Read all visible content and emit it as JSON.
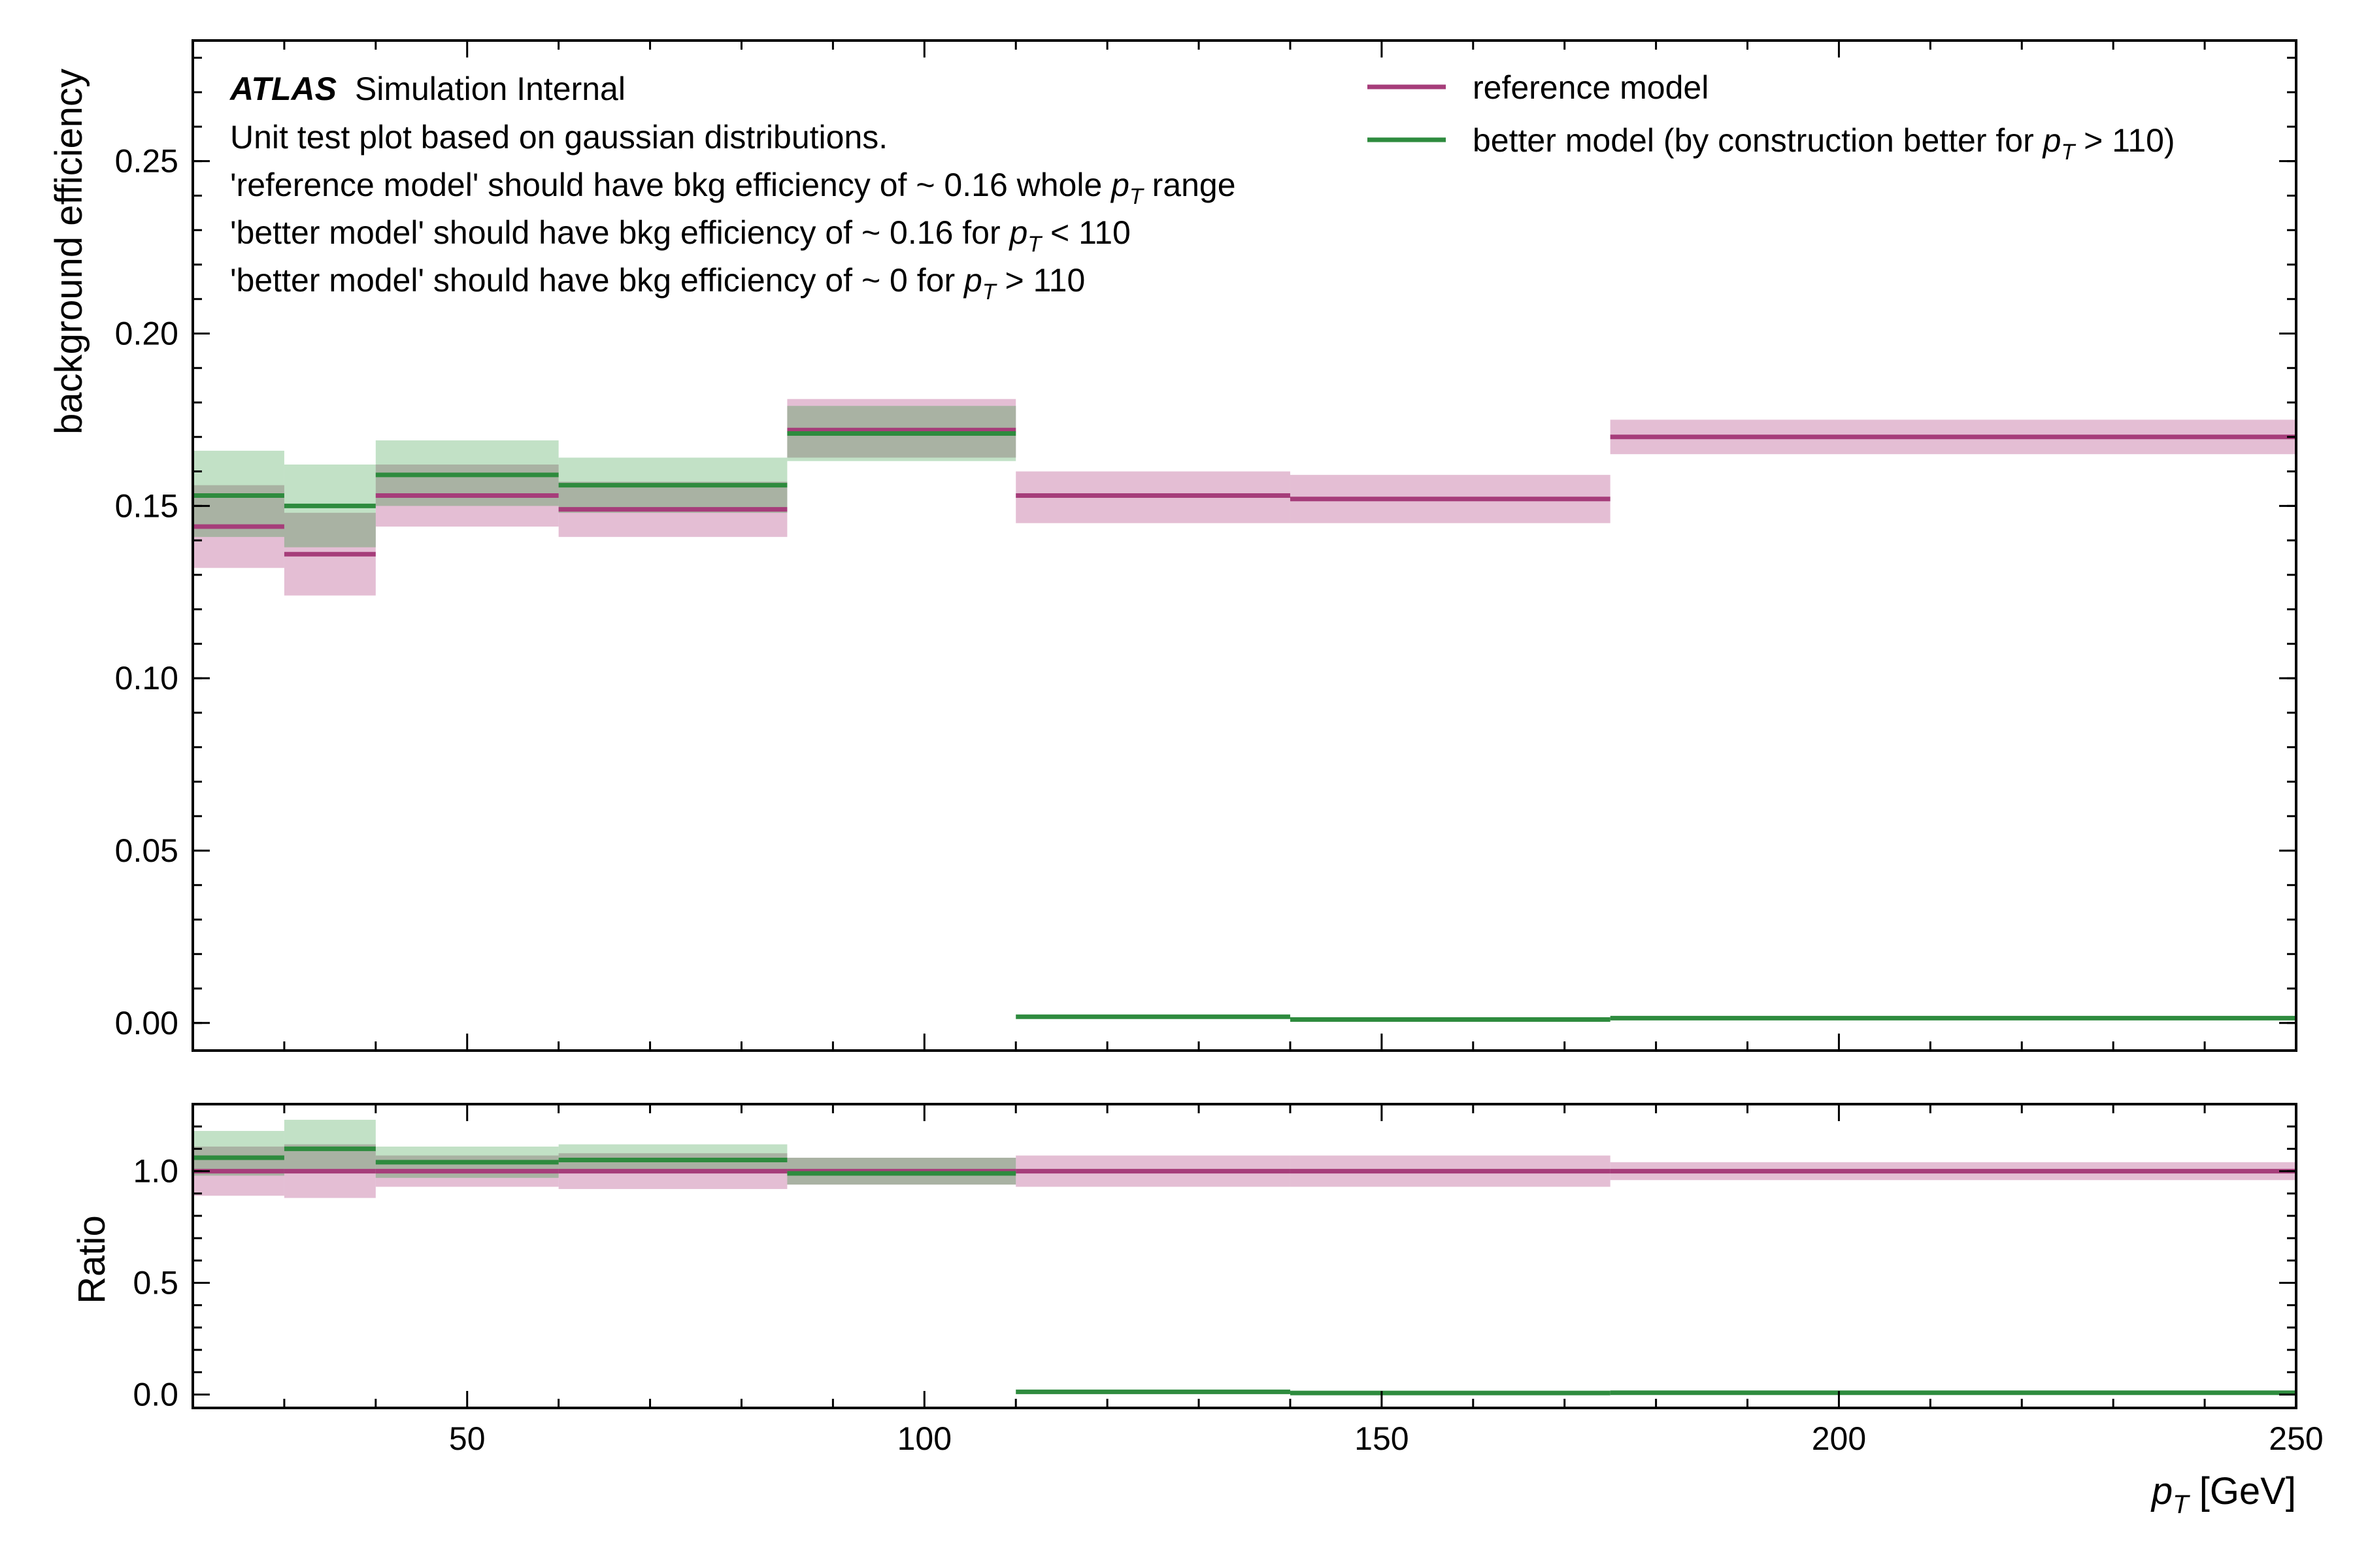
{
  "colors": {
    "reference": "#a63d7a",
    "reference_band": "#dba8c6",
    "better": "#2e8b3e",
    "better_band": "#a8d4ae"
  },
  "annotations": {
    "experiment": "ATLAS",
    "status": "Simulation Internal",
    "lines": [
      [
        "Unit test plot based on gaussian distributions."
      ],
      [
        "'reference model' should have bkg efficiency of ~ 0.16  whole ",
        "p",
        "T",
        " range"
      ],
      [
        "'better model' should have bkg efficiency of ~ 0.16 for ",
        "p",
        "T",
        " < 110"
      ],
      [
        "'better model' should have bkg efficiency of ~ 0 for ",
        "p",
        "T",
        " > 110"
      ]
    ]
  },
  "legend": {
    "reference": "reference model",
    "better_prefix": "better model (by construction better for ",
    "better_var": "p",
    "better_sub": "T",
    "better_suffix": " > 110)"
  },
  "chart_data": [
    {
      "type": "line",
      "panel": "main",
      "ylabel": "background efficiency",
      "xlim": [
        20,
        250
      ],
      "ylim": [
        -0.008,
        0.285
      ],
      "yticks": [
        0.0,
        0.05,
        0.1,
        0.15,
        0.2,
        0.25
      ],
      "ytick_labels": [
        "0.00",
        "0.05",
        "0.10",
        "0.15",
        "0.20",
        "0.25"
      ],
      "bin_edges": [
        20,
        30,
        40,
        60,
        85,
        110,
        140,
        175,
        250
      ],
      "series": [
        {
          "name": "reference model",
          "values": [
            0.144,
            0.136,
            0.153,
            0.149,
            0.172,
            0.153,
            0.152,
            0.17
          ],
          "lower": [
            0.132,
            0.124,
            0.144,
            0.141,
            0.164,
            0.145,
            0.145,
            0.165
          ],
          "upper": [
            0.156,
            0.148,
            0.162,
            0.157,
            0.181,
            0.16,
            0.159,
            0.175
          ]
        },
        {
          "name": "better model (by construction better for pT > 110)",
          "values": [
            0.153,
            0.15,
            0.159,
            0.156,
            0.171,
            0.0018,
            0.001,
            0.0014
          ],
          "lower": [
            0.141,
            0.138,
            0.15,
            0.148,
            0.163,
            0.0018,
            0.001,
            0.0014
          ],
          "upper": [
            0.166,
            0.162,
            0.169,
            0.164,
            0.179,
            0.0018,
            0.001,
            0.0014
          ]
        }
      ]
    },
    {
      "type": "line",
      "panel": "ratio",
      "ylabel": "Ratio",
      "xlabel": "p_T [GeV]",
      "xlim": [
        20,
        250
      ],
      "ylim": [
        -0.06,
        1.3
      ],
      "xticks": [
        50,
        100,
        150,
        200,
        250
      ],
      "xtick_labels": [
        "50",
        "100",
        "150",
        "200",
        "250"
      ],
      "yticks": [
        0.0,
        0.5,
        1.0
      ],
      "ytick_labels": [
        "0.0",
        "0.5",
        "1.0"
      ],
      "bin_edges": [
        20,
        30,
        40,
        60,
        85,
        110,
        140,
        175,
        250
      ],
      "series": [
        {
          "name": "reference model",
          "values": [
            1.0,
            1.0,
            1.0,
            1.0,
            1.0,
            1.0,
            1.0,
            1.0
          ],
          "lower": [
            0.89,
            0.88,
            0.93,
            0.92,
            0.94,
            0.93,
            0.93,
            0.96
          ],
          "upper": [
            1.11,
            1.12,
            1.07,
            1.08,
            1.06,
            1.07,
            1.07,
            1.04
          ]
        },
        {
          "name": "better model",
          "values": [
            1.06,
            1.1,
            1.04,
            1.05,
            0.99,
            0.012,
            0.007,
            0.008
          ],
          "lower": [
            0.98,
            1.01,
            0.97,
            0.99,
            0.94,
            0.012,
            0.007,
            0.008
          ],
          "upper": [
            1.18,
            1.23,
            1.11,
            1.12,
            1.06,
            0.012,
            0.007,
            0.008
          ]
        }
      ]
    }
  ]
}
